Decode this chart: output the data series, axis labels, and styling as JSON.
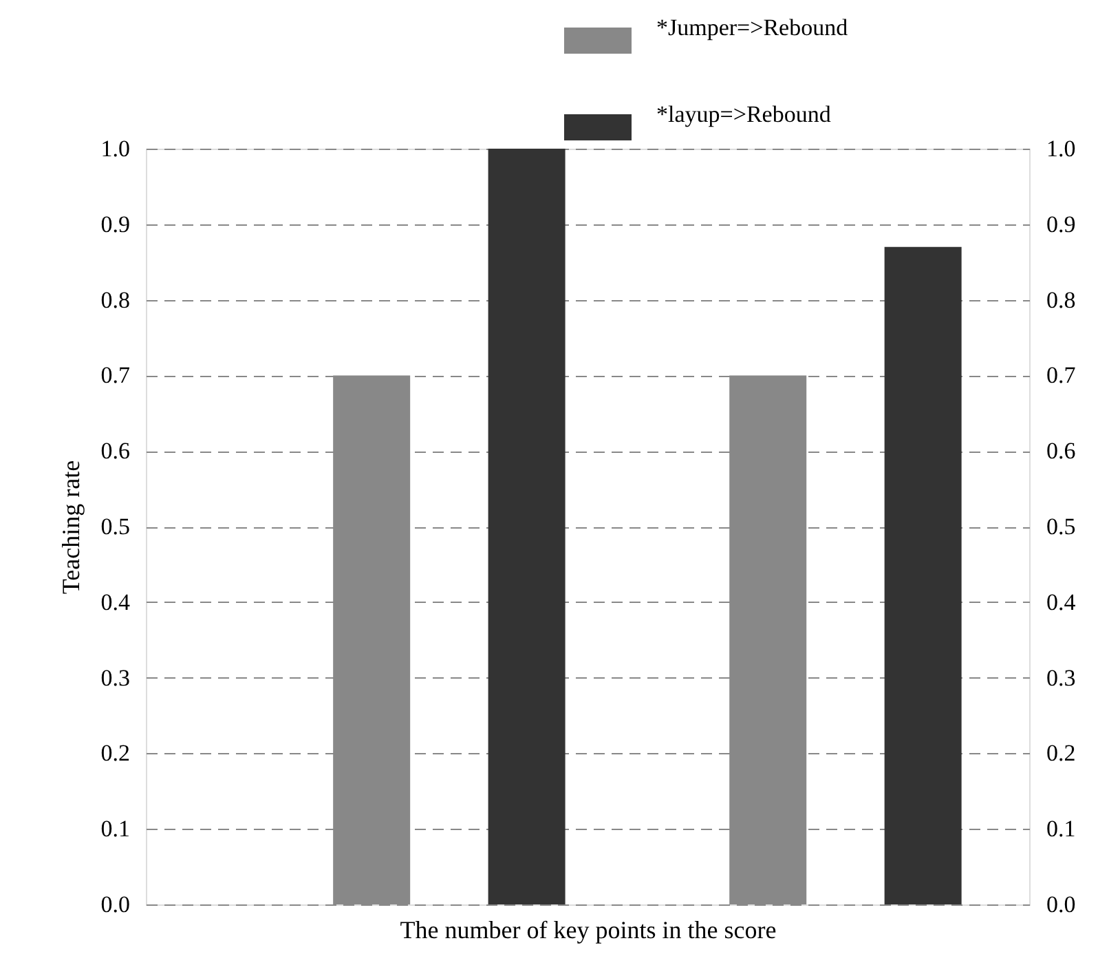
{
  "chart_data": {
    "type": "bar",
    "xlabel": "The number of key points in the score",
    "ylabel": "Teaching rate",
    "categories": [
      null,
      null
    ],
    "series": [
      {
        "name": "*Jumper=>Rebound",
        "color": "#888888",
        "values": [
          0.7,
          0.7
        ]
      },
      {
        "name": "*layup=>Rebound",
        "color": "#333333",
        "values": [
          1.0,
          0.87
        ]
      }
    ],
    "ylim": [
      0.0,
      1.0
    ],
    "yticks": [
      {
        "value": 0,
        "label": "0.0"
      },
      0.1,
      0.2,
      0.3,
      0.4,
      0.5,
      0.6,
      0.7,
      0.8,
      0.9,
      {
        "value": 1,
        "label": "1.0"
      }
    ],
    "y2lim": [
      0.0,
      1.0
    ],
    "y2ticks": [
      {
        "value": 0,
        "label": "0.0"
      },
      0.1,
      0.2,
      0.3,
      0.4,
      0.5,
      0.6,
      0.7,
      0.8,
      0.9,
      {
        "value": 1,
        "label": "1.0"
      }
    ],
    "grid": "y",
    "legend": "top"
  }
}
